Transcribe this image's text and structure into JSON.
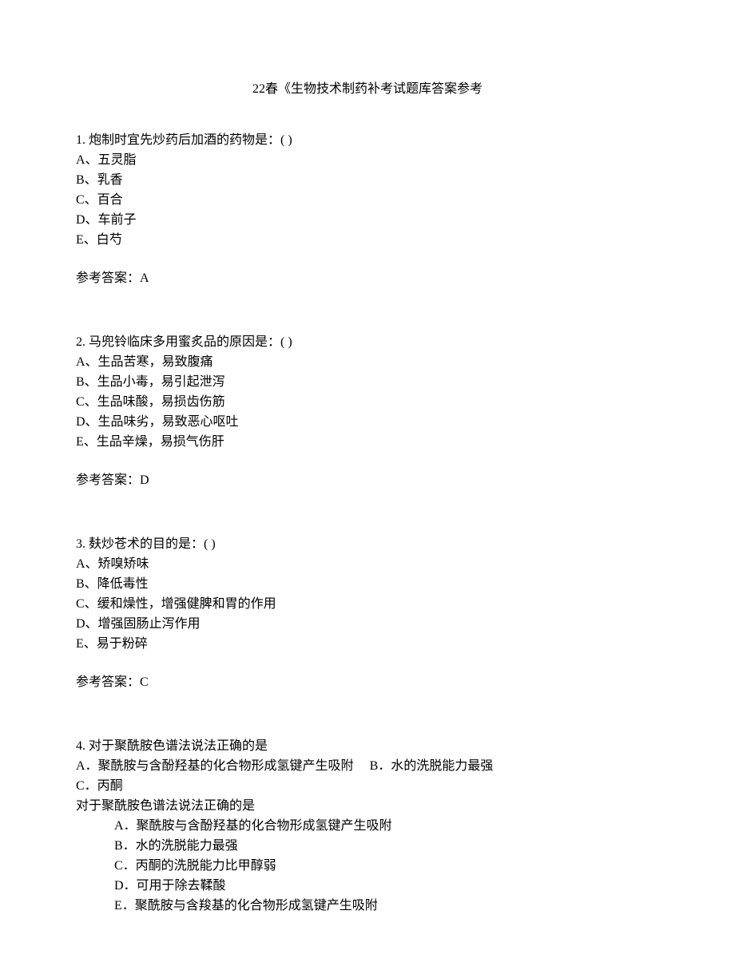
{
  "title": "22春《生物技术制药补考试题库答案参考",
  "questions": [
    {
      "stem": "1. 炮制时宜先炒药后加酒的药物是：(  )",
      "options": [
        "A、五灵脂",
        "B、乳香",
        "C、百合",
        "D、车前子",
        "E、白芍"
      ],
      "answer": "参考答案：A"
    },
    {
      "stem": "2. 马兜铃临床多用蜜炙品的原因是：(  )",
      "options": [
        "A、生品苦寒，易致腹痛",
        "B、生品小毒，易引起泄泻",
        "C、生品味酸，易损齿伤筋",
        "D、生品味劣，易致恶心呕吐",
        "E、生品辛燥，易损气伤肝"
      ],
      "answer": "参考答案：D"
    },
    {
      "stem": "3. 麸炒苍术的目的是：(  )",
      "options": [
        "A、矫嗅矫味",
        "B、降低毒性",
        "C、缓和燥性，增强健脾和胃的作用",
        "D、增强固肠止泻作用",
        "E、易于粉碎"
      ],
      "answer": "参考答案：C"
    }
  ],
  "q4": {
    "stem": "4. 对于聚酰胺色谱法说法正确的是",
    "inline_a": "A．聚酰胺与含酚羟基的化合物形成氢键产生吸附",
    "inline_b": "B．水的洗脱能力最强",
    "inline_c": "C．丙酮",
    "repeat": "对于聚酰胺色谱法说法正确的是",
    "sub_options": [
      "A．聚酰胺与含酚羟基的化合物形成氢键产生吸附",
      "B．水的洗脱能力最强",
      "C．丙酮的洗脱能力比甲醇弱",
      "D．可用于除去鞣酸",
      "E．聚酰胺与含羧基的化合物形成氢键产生吸附"
    ]
  }
}
